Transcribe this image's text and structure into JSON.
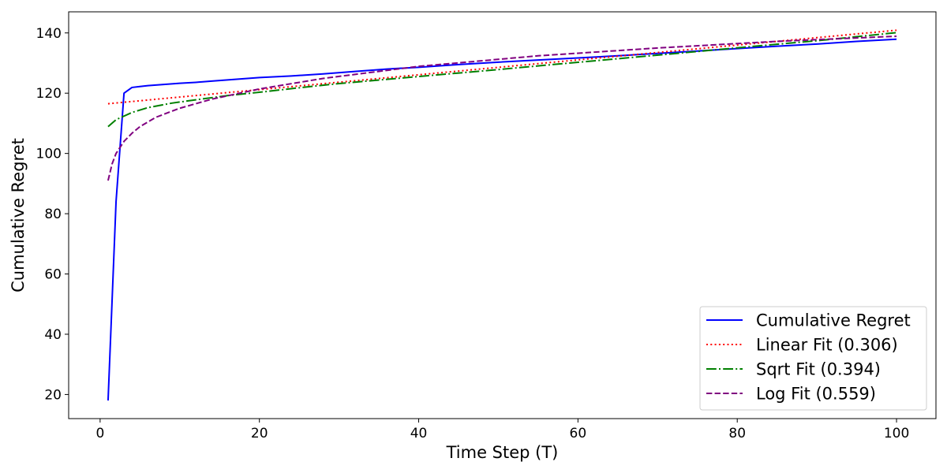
{
  "chart_data": {
    "type": "line",
    "title": "",
    "xlabel": "Time Step (T)",
    "ylabel": "Cumulative Regret",
    "xlim": [
      -3.95,
      104.95
    ],
    "ylim": [
      12.0,
      147.0
    ],
    "xticks": [
      0,
      20,
      40,
      60,
      80,
      100
    ],
    "yticks": [
      20,
      40,
      60,
      80,
      100,
      120,
      140
    ],
    "grid": false,
    "legend_position": "lower-right",
    "series": [
      {
        "name": "Cumulative Regret",
        "color": "#0000ff",
        "style": "solid",
        "x": [
          1,
          2,
          3,
          4,
          5,
          6,
          8,
          10,
          12,
          14,
          16,
          18,
          20,
          24,
          28,
          32,
          36,
          40,
          45,
          50,
          55,
          60,
          65,
          70,
          75,
          80,
          85,
          90,
          95,
          100
        ],
        "y": [
          18,
          84,
          120,
          121.9,
          122.2,
          122.5,
          122.9,
          123.3,
          123.6,
          124.0,
          124.4,
          124.8,
          125.2,
          125.7,
          126.4,
          127.2,
          128.0,
          128.6,
          129.5,
          130.3,
          131.0,
          131.7,
          132.4,
          133.2,
          134.0,
          134.8,
          135.6,
          136.3,
          137.2,
          137.9
        ]
      },
      {
        "name": "Linear Fit (0.306)",
        "color": "#ff0000",
        "style": "dotted",
        "x": [
          1,
          100
        ],
        "y": [
          116.5,
          140.9
        ]
      },
      {
        "name": "Sqrt Fit (0.394)",
        "color": "#008000",
        "style": "dashdot",
        "x": [
          1,
          2,
          4,
          6,
          9,
          12,
          16,
          20,
          25,
          30,
          36,
          42,
          49,
          56,
          64,
          72,
          81,
          90,
          100
        ],
        "y": [
          108.9,
          111.2,
          113.6,
          115.2,
          116.7,
          117.8,
          119.2,
          120.3,
          121.8,
          123.2,
          124.6,
          126.0,
          127.6,
          129.3,
          131.2,
          133.1,
          135.3,
          137.4,
          140.1
        ]
      },
      {
        "name": "Log Fit (0.559)",
        "color": "#800080",
        "style": "dashed",
        "x": [
          1,
          1.5,
          2,
          3,
          4,
          5,
          7,
          10,
          14,
          20,
          28,
          40,
          55,
          70,
          85,
          100
        ],
        "y": [
          91.0,
          96.5,
          100.0,
          104.0,
          106.7,
          108.9,
          112.0,
          115.0,
          118.0,
          121.4,
          124.9,
          128.9,
          132.4,
          135.0,
          137.2,
          138.9
        ]
      }
    ]
  }
}
